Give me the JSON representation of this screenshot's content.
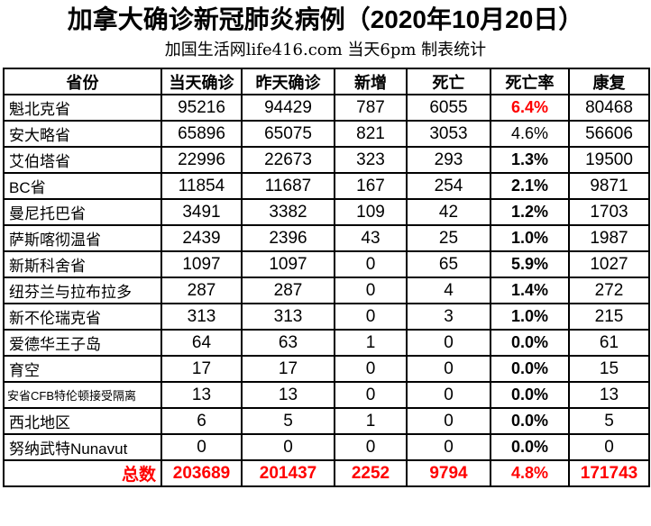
{
  "title": "加拿大确诊新冠肺炎病例（2020年10月20日）",
  "subtitle": "加国生活网life416.com 当天6pm 制表统计",
  "colors": {
    "text": "#000000",
    "highlight_red": "#ff0000",
    "border": "#000000",
    "background": "#ffffff"
  },
  "table": {
    "headers": [
      "省份",
      "当天确诊",
      "昨天确诊",
      "新增",
      "死亡",
      "死亡率",
      "康复"
    ],
    "rows": [
      {
        "province": "魁北克省",
        "today": "95216",
        "yesterday": "94429",
        "new": "787",
        "deaths": "6055",
        "death_rate": "6.4%",
        "recovered": "80468",
        "rate_style": "red-bold",
        "small": false
      },
      {
        "province": "安大略省",
        "today": "65896",
        "yesterday": "65075",
        "new": "821",
        "deaths": "3053",
        "death_rate": "4.6%",
        "recovered": "56606",
        "rate_style": "regular",
        "small": false
      },
      {
        "province": "艾伯塔省",
        "today": "22996",
        "yesterday": "22673",
        "new": "323",
        "deaths": "293",
        "death_rate": "1.3%",
        "recovered": "19500",
        "rate_style": "bold",
        "small": false
      },
      {
        "province": "BC省",
        "today": "11854",
        "yesterday": "11687",
        "new": "167",
        "deaths": "254",
        "death_rate": "2.1%",
        "recovered": "9871",
        "rate_style": "bold",
        "small": false
      },
      {
        "province": "曼尼托巴省",
        "today": "3491",
        "yesterday": "3382",
        "new": "109",
        "deaths": "42",
        "death_rate": "1.2%",
        "recovered": "1703",
        "rate_style": "bold",
        "small": false
      },
      {
        "province": "萨斯喀彻温省",
        "today": "2439",
        "yesterday": "2396",
        "new": "43",
        "deaths": "25",
        "death_rate": "1.0%",
        "recovered": "1987",
        "rate_style": "bold",
        "small": false
      },
      {
        "province": "新斯科舍省",
        "today": "1097",
        "yesterday": "1097",
        "new": "0",
        "deaths": "65",
        "death_rate": "5.9%",
        "recovered": "1027",
        "rate_style": "bold",
        "small": false
      },
      {
        "province": "纽芬兰与拉布拉多",
        "today": "287",
        "yesterday": "287",
        "new": "0",
        "deaths": "4",
        "death_rate": "1.4%",
        "recovered": "272",
        "rate_style": "bold",
        "small": false
      },
      {
        "province": "新不伦瑞克省",
        "today": "313",
        "yesterday": "313",
        "new": "0",
        "deaths": "3",
        "death_rate": "1.0%",
        "recovered": "215",
        "rate_style": "bold",
        "small": false
      },
      {
        "province": "爱德华王子岛",
        "today": "64",
        "yesterday": "63",
        "new": "1",
        "deaths": "0",
        "death_rate": "0.0%",
        "recovered": "61",
        "rate_style": "bold",
        "small": false
      },
      {
        "province": "育空",
        "today": "17",
        "yesterday": "17",
        "new": "0",
        "deaths": "0",
        "death_rate": "0.0%",
        "recovered": "15",
        "rate_style": "bold",
        "small": false
      },
      {
        "province": "安省CFB特伦顿接受隔离",
        "today": "13",
        "yesterday": "13",
        "new": "0",
        "deaths": "0",
        "death_rate": "0.0%",
        "recovered": "13",
        "rate_style": "bold",
        "small": true
      },
      {
        "province": "西北地区",
        "today": "6",
        "yesterday": "5",
        "new": "1",
        "deaths": "0",
        "death_rate": "0.0%",
        "recovered": "5",
        "rate_style": "bold",
        "small": false
      },
      {
        "province": "努纳武特Nunavut",
        "today": "0",
        "yesterday": "0",
        "new": "0",
        "deaths": "0",
        "death_rate": "0.0%",
        "recovered": "0",
        "rate_style": "bold",
        "small": false
      }
    ],
    "total": {
      "label": "总数",
      "today": "203689",
      "yesterday": "201437",
      "new": "2252",
      "deaths": "9794",
      "death_rate": "4.8%",
      "recovered": "171743"
    }
  }
}
